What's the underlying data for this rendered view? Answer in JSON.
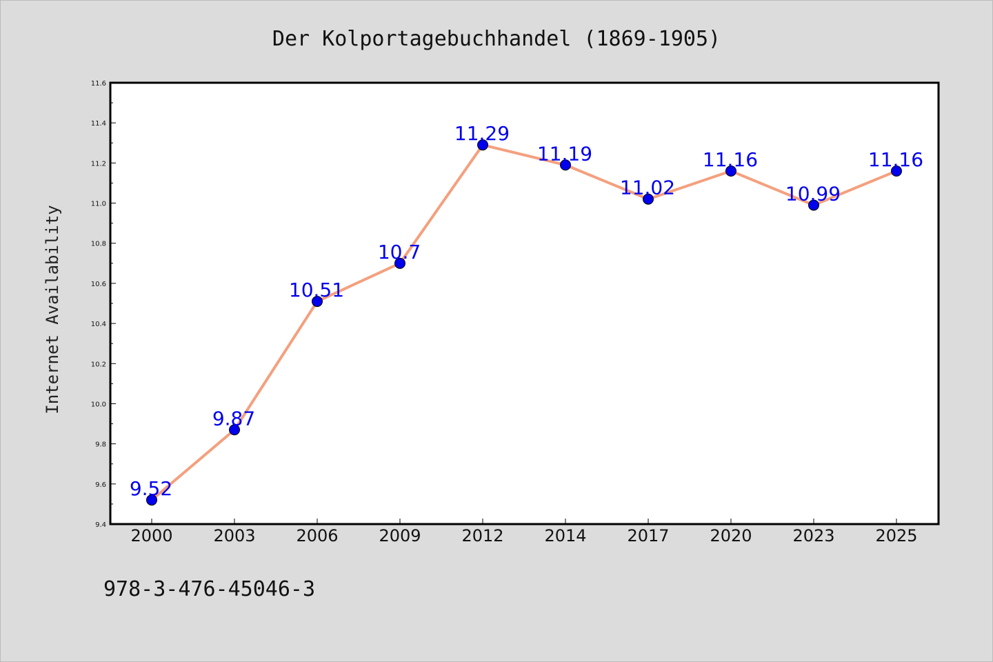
{
  "chart_data": {
    "type": "line",
    "title": "Der Kolportagebuchhandel (1869-1905)",
    "xlabel": "",
    "ylabel": "Internet Availability",
    "categories": [
      "2000",
      "2003",
      "2006",
      "2009",
      "2012",
      "2014",
      "2017",
      "2020",
      "2023",
      "2025"
    ],
    "series": [
      {
        "values": [
          9.52,
          9.87,
          10.51,
          10.7,
          11.29,
          11.19,
          11.02,
          11.16,
          10.99,
          11.16
        ],
        "data_labels": [
          "9.52",
          "9.87",
          "10.51",
          "10.7",
          "11.29",
          "11.19",
          "11.02",
          "11.16",
          "10.99",
          "11.16"
        ],
        "line_color": "#f4a07e",
        "marker_color": "#0000ee"
      }
    ],
    "ylim": [
      9.4,
      11.6
    ],
    "yticks": [
      "9.4",
      "9.6",
      "9.8",
      "10.0",
      "10.2",
      "10.4",
      "10.6",
      "10.8",
      "11.0",
      "11.2",
      "11.4",
      "11.6"
    ],
    "grid": false,
    "legend": "none"
  },
  "footnote": "978-3-476-45046-3",
  "colors": {
    "background": "#dcdcdc",
    "plot_background": "#ffffff",
    "line": "#f4a07e",
    "marker": "#0000ee",
    "data_label": "#0000ee"
  }
}
